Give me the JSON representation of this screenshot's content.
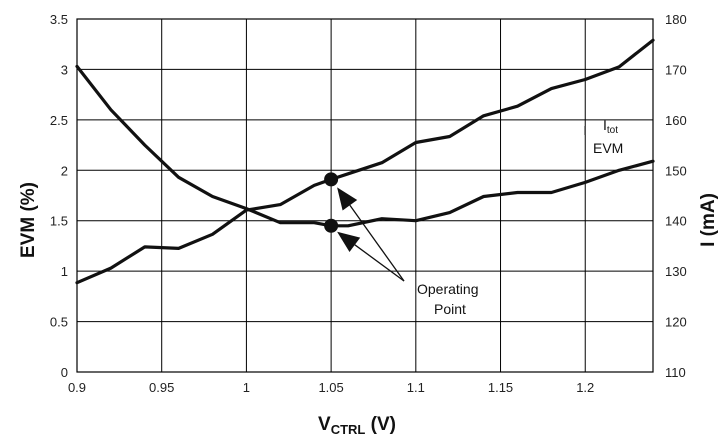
{
  "chart_data": {
    "type": "line",
    "xlabel_main": "V",
    "xlabel_sub": "CTRL",
    "xlabel_unit": " (V)",
    "ylabel_left": "EVM (%)",
    "ylabel_right": "I (mA)",
    "xlim": [
      0.9,
      1.24
    ],
    "ylim_left": [
      0,
      3.5
    ],
    "ylim_right": [
      110,
      180
    ],
    "x_ticks": [
      0.9,
      0.95,
      1,
      1.05,
      1.1,
      1.15,
      1.2
    ],
    "x_tick_labels": [
      "0.9",
      "0.95",
      "1",
      "1.05",
      "1.1",
      "1.15",
      "1.2"
    ],
    "y_left_ticks": [
      0,
      0.5,
      1,
      1.5,
      2,
      2.5,
      3,
      3.5
    ],
    "y_left_tick_labels": [
      "0",
      "0.5",
      "1",
      "1.5",
      "2",
      "2.5",
      "3",
      "3.5"
    ],
    "y_right_ticks": [
      110,
      120,
      130,
      140,
      150,
      160,
      170,
      180
    ],
    "y_right_tick_labels": [
      "110",
      "120",
      "130",
      "140",
      "150",
      "160",
      "170",
      "180"
    ],
    "grid": true,
    "series": [
      {
        "name": "EVM",
        "axis": "left",
        "x": [
          0.9,
          0.92,
          0.94,
          0.96,
          0.98,
          1.0,
          1.02,
          1.04,
          1.05,
          1.06,
          1.08,
          1.1,
          1.12,
          1.14,
          1.16,
          1.18,
          1.2,
          1.22,
          1.24
        ],
        "y": [
          3.03,
          2.6,
          2.25,
          1.93,
          1.74,
          1.62,
          1.48,
          1.48,
          1.45,
          1.45,
          1.52,
          1.5,
          1.58,
          1.74,
          1.78,
          1.78,
          1.88,
          2.0,
          2.09
        ]
      },
      {
        "name": "I_tot",
        "axis": "right",
        "x": [
          0.9,
          0.92,
          0.94,
          0.96,
          0.98,
          1.0,
          1.02,
          1.04,
          1.05,
          1.06,
          1.08,
          1.1,
          1.12,
          1.14,
          1.16,
          1.18,
          1.2,
          1.22,
          1.24
        ],
        "y": [
          127.7,
          130.6,
          134.8,
          134.5,
          137.3,
          142.1,
          143.2,
          147.0,
          148.2,
          149.3,
          151.5,
          155.5,
          156.7,
          160.8,
          162.7,
          166.2,
          168.0,
          170.5,
          175.8
        ]
      }
    ],
    "labels": {
      "itot_main": "I",
      "itot_sub": "tot",
      "evm": "EVM",
      "operating_point": [
        "Operating",
        "Point"
      ]
    },
    "operating_points": [
      {
        "x": 1.05,
        "y": 1.91,
        "axis": "left"
      },
      {
        "x": 1.05,
        "y": 1.45,
        "axis": "left"
      }
    ]
  }
}
